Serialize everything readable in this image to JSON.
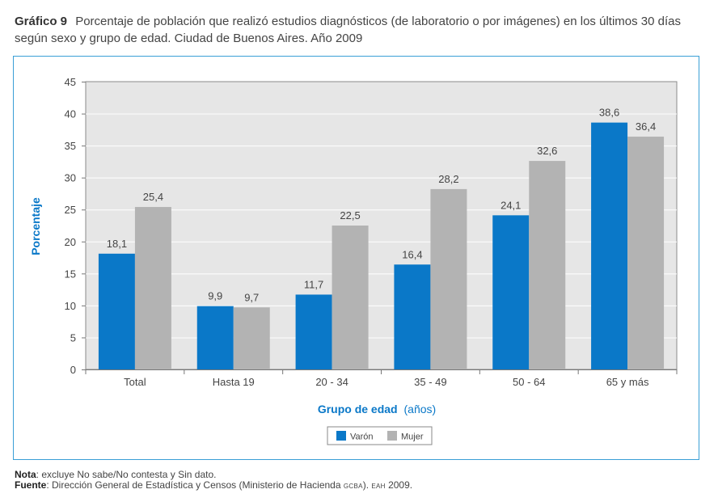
{
  "header": {
    "figure_label": "Gráfico 9",
    "title": "Porcentaje de población que realizó estudios diagnósticos (de laboratorio o por imágenes) en los últimos 30 días según sexo y grupo de edad. Ciudad de Buenos Aires. Año 2009"
  },
  "chart_data": {
    "type": "bar",
    "categories": [
      "Total",
      "Hasta 19",
      "20 - 34",
      "35 - 49",
      "50 - 64",
      "65 y más"
    ],
    "series": [
      {
        "name": "Varón",
        "color": "#0a78c8",
        "values": [
          18.1,
          9.9,
          11.7,
          16.4,
          24.1,
          38.6
        ],
        "labels": [
          "18,1",
          "9,9",
          "11,7",
          "16,4",
          "24,1",
          "38,6"
        ]
      },
      {
        "name": "Mujer",
        "color": "#b3b3b3",
        "values": [
          25.4,
          9.7,
          22.5,
          28.2,
          32.6,
          36.4
        ],
        "labels": [
          "25,4",
          "9,7",
          "22,5",
          "28,2",
          "32,6",
          "36,4"
        ]
      }
    ],
    "ylim": [
      0,
      45
    ],
    "yticks": [
      0,
      5,
      10,
      15,
      20,
      25,
      30,
      35,
      40,
      45
    ],
    "ylabel": "Porcentaje",
    "xlabel": "Grupo de edad",
    "xlabel_suffix": "(años)",
    "legend_position": "bottom-center",
    "grid": true,
    "plot_background": "#e6e6e6",
    "accent_color": "#0a78c8"
  },
  "notes": {
    "nota_label": "Nota",
    "nota_text": ": excluye No sabe/No contesta y Sin dato.",
    "fuente_label": "Fuente",
    "fuente_text": ": Dirección General de Estadística y Censos (Ministerio de Hacienda ",
    "fuente_org": "GCBA",
    "fuente_sep": "). ",
    "fuente_survey": "EAH",
    "fuente_year": " 2009."
  }
}
